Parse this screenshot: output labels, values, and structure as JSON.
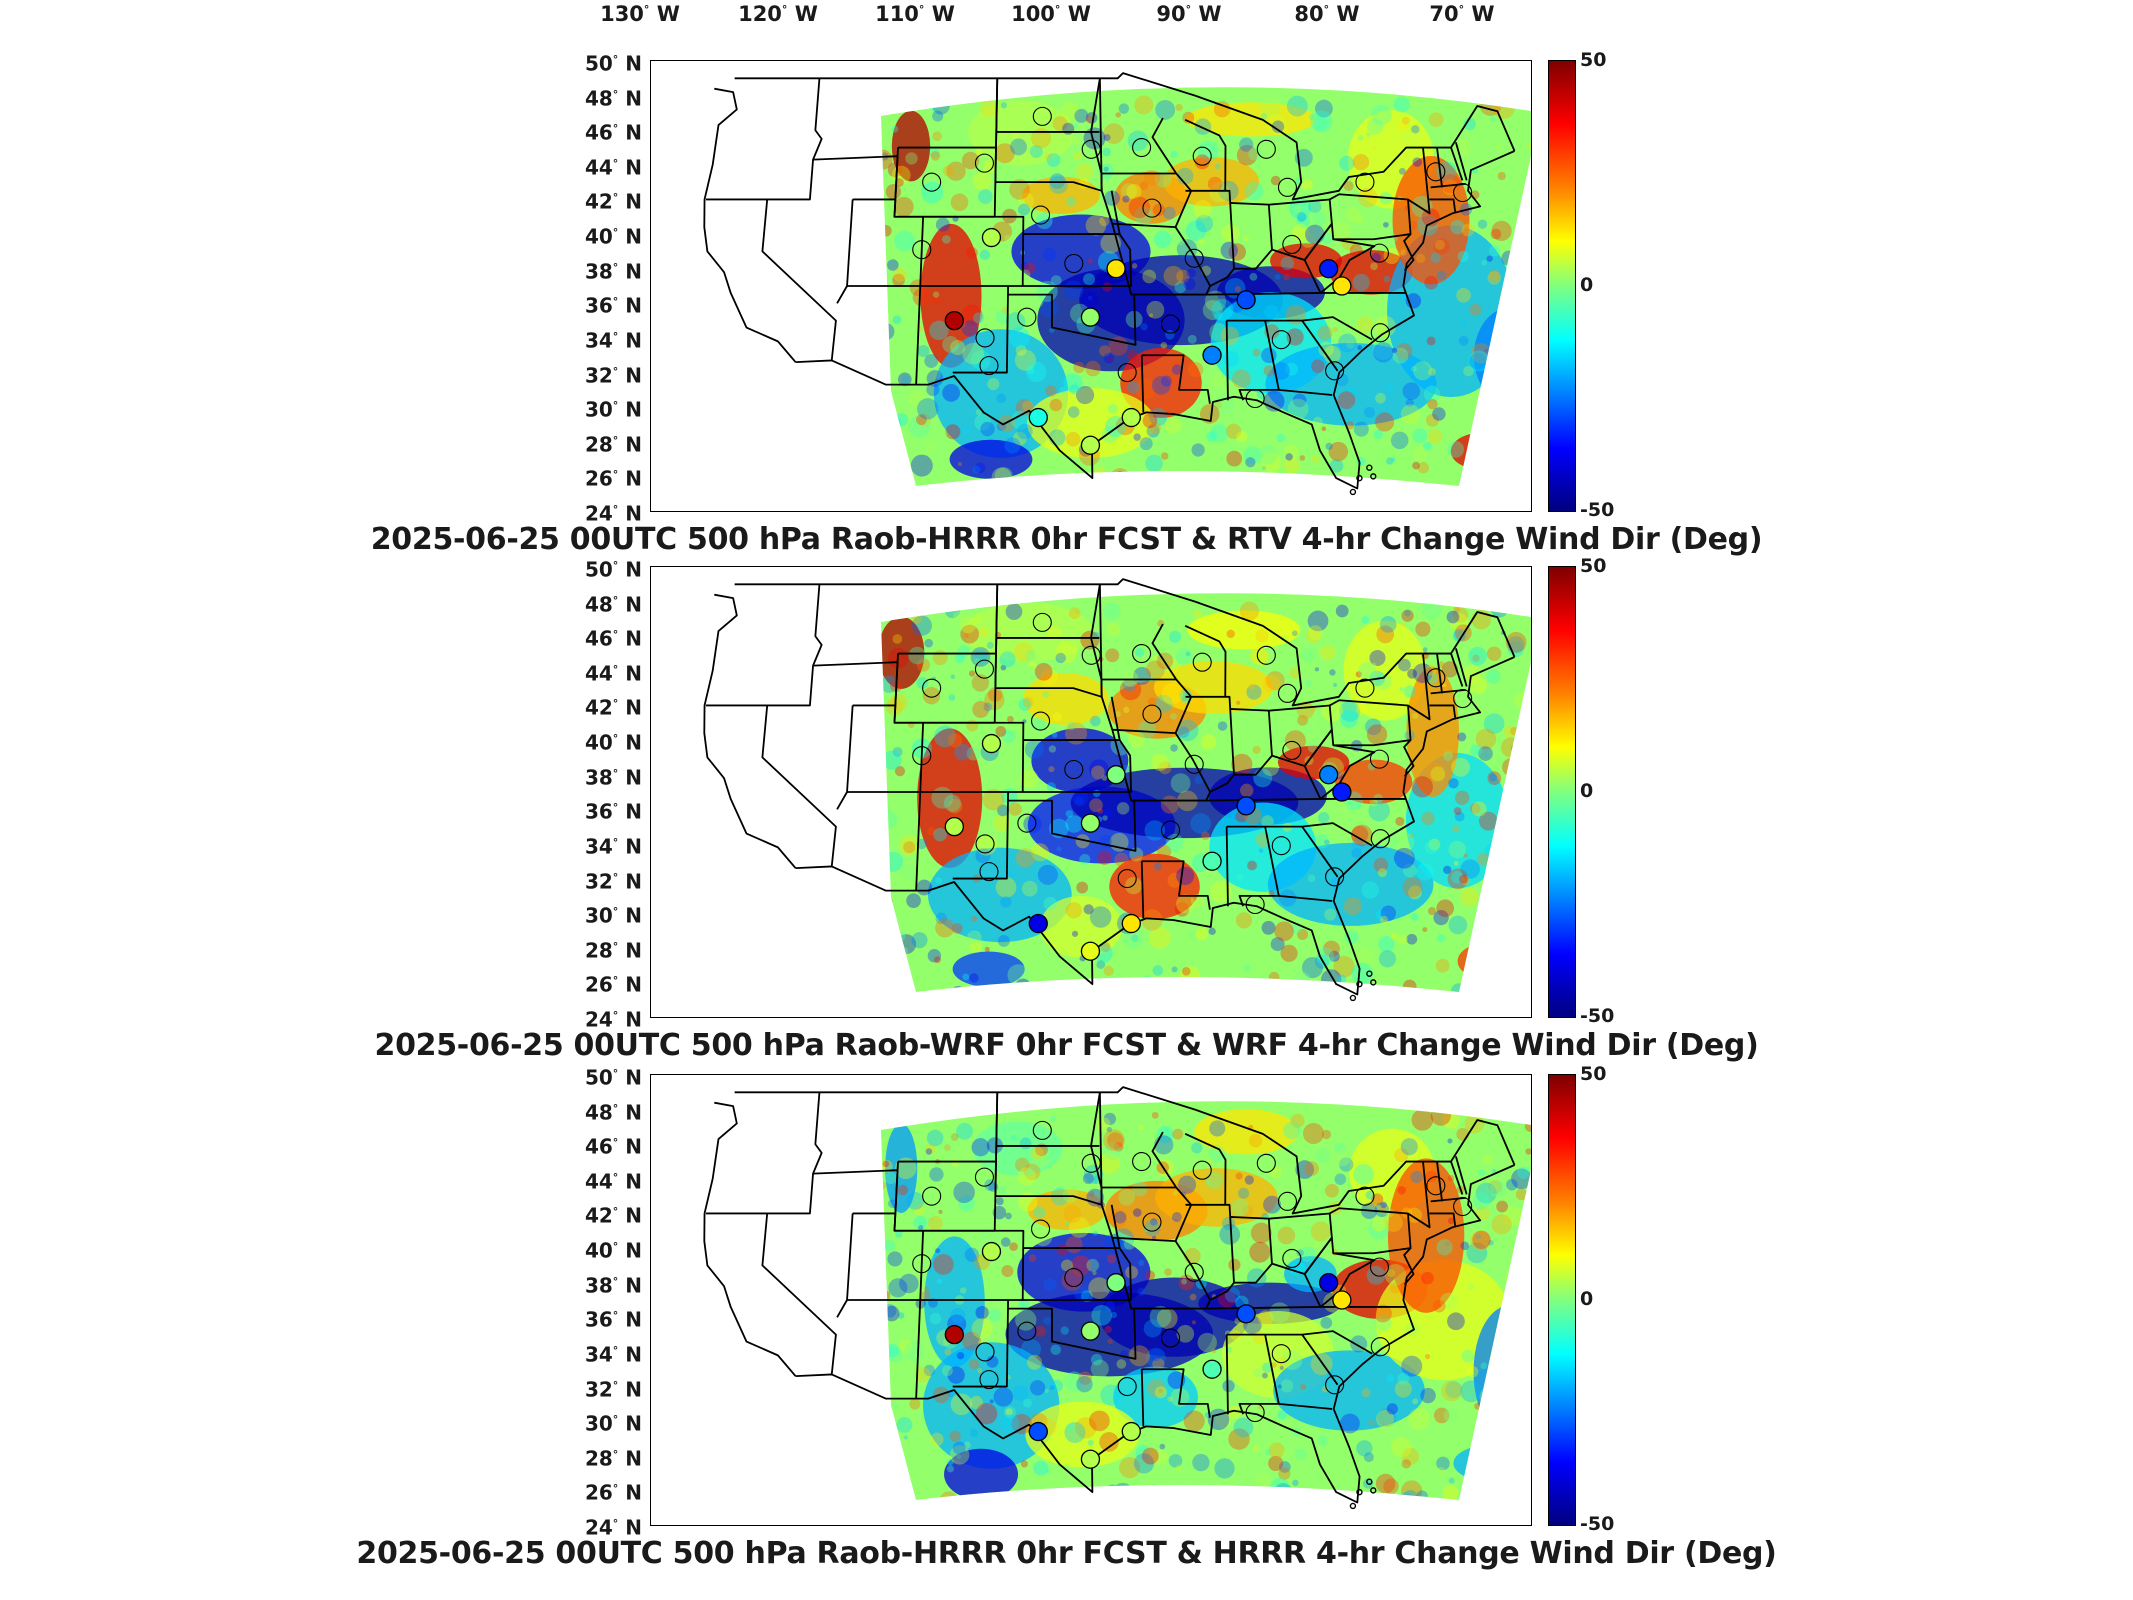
{
  "longitude_labels": [
    {
      "deg": "130",
      "hemi": "W"
    },
    {
      "deg": "120",
      "hemi": "W"
    },
    {
      "deg": "110",
      "hemi": "W"
    },
    {
      "deg": "100",
      "hemi": "W"
    },
    {
      "deg": "90",
      "hemi": "W"
    },
    {
      "deg": "80",
      "hemi": "W"
    },
    {
      "deg": "70",
      "hemi": "W"
    }
  ],
  "latitude_labels": [
    {
      "deg": "50",
      "hemi": "N"
    },
    {
      "deg": "48",
      "hemi": "N"
    },
    {
      "deg": "46",
      "hemi": "N"
    },
    {
      "deg": "44",
      "hemi": "N"
    },
    {
      "deg": "42",
      "hemi": "N"
    },
    {
      "deg": "40",
      "hemi": "N"
    },
    {
      "deg": "38",
      "hemi": "N"
    },
    {
      "deg": "36",
      "hemi": "N"
    },
    {
      "deg": "34",
      "hemi": "N"
    },
    {
      "deg": "32",
      "hemi": "N"
    },
    {
      "deg": "30",
      "hemi": "N"
    },
    {
      "deg": "28",
      "hemi": "N"
    },
    {
      "deg": "26",
      "hemi": "N"
    },
    {
      "deg": "24",
      "hemi": "N"
    }
  ],
  "colorbar": {
    "max_label": "50",
    "mid_label": "0",
    "min_label": "-50",
    "colormap": [
      "#7f0000",
      "#ff0000",
      "#ff7f00",
      "#ffff00",
      "#7fff7f",
      "#00ffff",
      "#007fff",
      "#0000ff",
      "#00007f"
    ]
  },
  "panels": [
    {
      "title": "2025-06-25 00UTC 500 hPa Raob-HRRR 0hr FCST & RTV 4-hr Change Wind Dir (Deg)"
    },
    {
      "title": "2025-06-25 00UTC 500 hPa Raob-WRF 0hr FCST & WRF 4-hr Change Wind Dir (Deg)"
    },
    {
      "title": "2025-06-25 00UTC 500 hPa Raob-HRRR 0hr FCST & HRRR 4-hr Change Wind Dir (Deg)"
    }
  ],
  "map_data": {
    "type": "gridded field map with station markers",
    "variable": "4-hr change wind direction (Deg)",
    "value_range": [
      -50,
      50
    ],
    "stations": [
      {
        "lon": -106.6,
        "lat": 35.0,
        "values": [
          45,
          5,
          45
        ]
      },
      {
        "lon": -104.2,
        "lat": 39.8,
        "values": [
          5,
          5,
          5
        ]
      },
      {
        "lon": -97.4,
        "lat": 35.2,
        "values": [
          2,
          2,
          2
        ]
      },
      {
        "lon": -86.8,
        "lat": 36.2,
        "values": [
          -30,
          -30,
          -30
        ]
      },
      {
        "lon": -81.0,
        "lat": 38.0,
        "values": [
          -35,
          -25,
          -40
        ]
      },
      {
        "lon": -80.2,
        "lat": 37.0,
        "values": [
          15,
          -35,
          15
        ]
      },
      {
        "lon": -95.6,
        "lat": 38.0,
        "values": [
          15,
          0,
          0
        ]
      },
      {
        "lon": -89.3,
        "lat": 33.0,
        "values": [
          -25,
          -5,
          -5
        ]
      },
      {
        "lon": -94.8,
        "lat": 29.4,
        "values": [
          5,
          15,
          5
        ]
      },
      {
        "lon": -97.5,
        "lat": 27.8,
        "values": [
          5,
          10,
          5
        ]
      },
      {
        "lon": -100.9,
        "lat": 29.4,
        "values": [
          -10,
          -40,
          -30
        ]
      }
    ]
  }
}
